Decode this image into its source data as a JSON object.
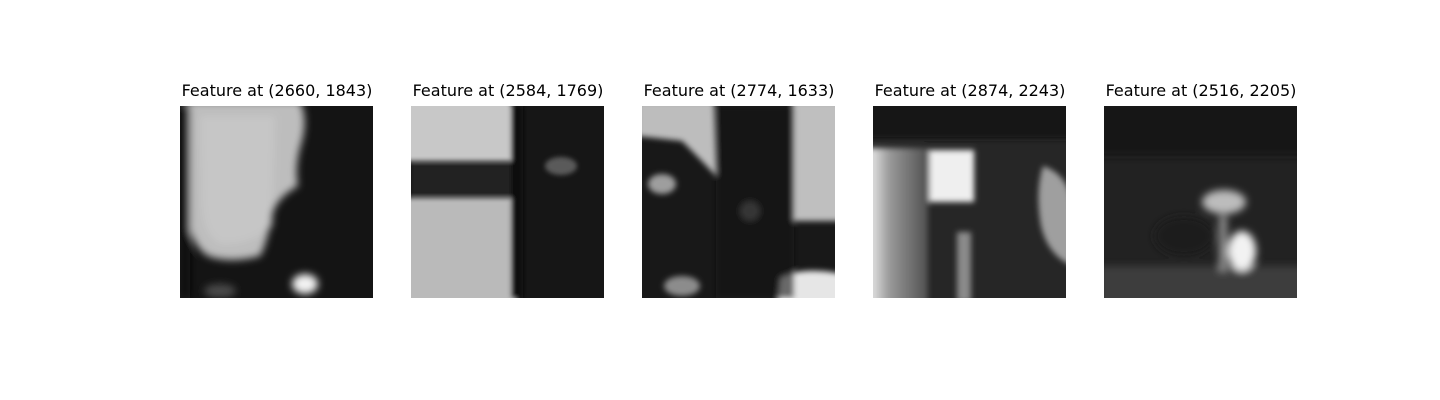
{
  "figure": {
    "panels": [
      {
        "title": "Feature at (2660, 1843)"
      },
      {
        "title": "Feature at (2584, 1769)"
      },
      {
        "title": "Feature at (2774, 1633)"
      },
      {
        "title": "Feature at (2874, 2243)"
      },
      {
        "title": "Feature at (2516, 2205)"
      }
    ]
  }
}
